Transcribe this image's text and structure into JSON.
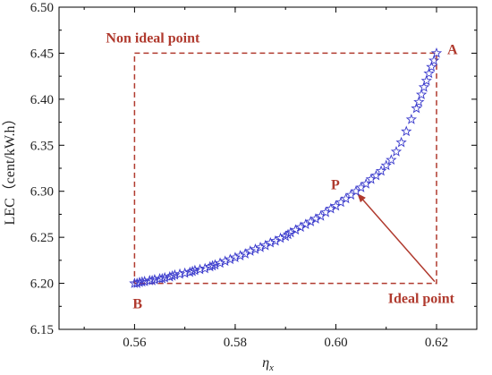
{
  "chart_data": {
    "type": "scatter",
    "title": "",
    "xlabel": "η",
    "xlabel_sub": "x",
    "ylabel": "LEC（cent/kW.h）",
    "xlim": [
      0.545,
      0.628
    ],
    "ylim": [
      6.15,
      6.5
    ],
    "x_ticks": [
      "0.56",
      "0.58",
      "0.60",
      "0.62"
    ],
    "y_ticks": [
      "6.15",
      "6.20",
      "6.25",
      "6.30",
      "6.35",
      "6.40",
      "6.45",
      "6.50"
    ],
    "marker": "star",
    "colors": {
      "points": "#3a3acc",
      "annotation": "#b03a2e",
      "axis": "#000000"
    },
    "series": [
      {
        "name": "",
        "x": [
          0.56,
          0.5605,
          0.561,
          0.5615,
          0.562,
          0.563,
          0.5635,
          0.564,
          0.565,
          0.5655,
          0.566,
          0.567,
          0.5675,
          0.568,
          0.569,
          0.57,
          0.571,
          0.5715,
          0.572,
          0.573,
          0.574,
          0.575,
          0.5755,
          0.576,
          0.577,
          0.578,
          0.579,
          0.58,
          0.581,
          0.582,
          0.583,
          0.584,
          0.585,
          0.586,
          0.587,
          0.588,
          0.589,
          0.59,
          0.5905,
          0.591,
          0.592,
          0.593,
          0.594,
          0.595,
          0.596,
          0.597,
          0.598,
          0.599,
          0.6,
          0.601,
          0.602,
          0.603,
          0.604,
          0.605,
          0.606,
          0.607,
          0.608,
          0.609,
          0.61,
          0.611,
          0.612,
          0.613,
          0.614,
          0.615,
          0.616,
          0.6165,
          0.617,
          0.6175,
          0.618,
          0.6185,
          0.619,
          0.6195,
          0.62
        ],
        "y": [
          6.2,
          6.2,
          6.201,
          6.2015,
          6.202,
          6.203,
          6.203,
          6.204,
          6.205,
          6.205,
          6.206,
          6.207,
          6.208,
          6.209,
          6.21,
          6.211,
          6.212,
          6.213,
          6.214,
          6.215,
          6.216,
          6.218,
          6.219,
          6.22,
          6.222,
          6.224,
          6.226,
          6.228,
          6.23,
          6.232,
          6.235,
          6.237,
          6.239,
          6.241,
          6.244,
          6.246,
          6.249,
          6.251,
          6.253,
          6.255,
          6.258,
          6.261,
          6.264,
          6.267,
          6.27,
          6.273,
          6.277,
          6.281,
          6.284,
          6.288,
          6.292,
          6.296,
          6.3,
          6.304,
          6.308,
          6.313,
          6.317,
          6.322,
          6.328,
          6.334,
          6.343,
          6.353,
          6.365,
          6.378,
          6.39,
          6.397,
          6.405,
          6.413,
          6.42,
          6.428,
          6.435,
          6.442,
          6.45
        ]
      }
    ],
    "annotations": {
      "non_ideal_label": "Non ideal point",
      "point_a": "A",
      "point_b": "B",
      "point_p": "P",
      "ideal_label": "Ideal point",
      "rect": {
        "x0": 0.56,
        "x1": 0.62,
        "y0": 6.2,
        "y1": 6.45
      },
      "p_point": {
        "x": 0.604,
        "y": 6.3
      },
      "ideal_point": {
        "x": 0.62,
        "y": 6.2
      }
    }
  }
}
